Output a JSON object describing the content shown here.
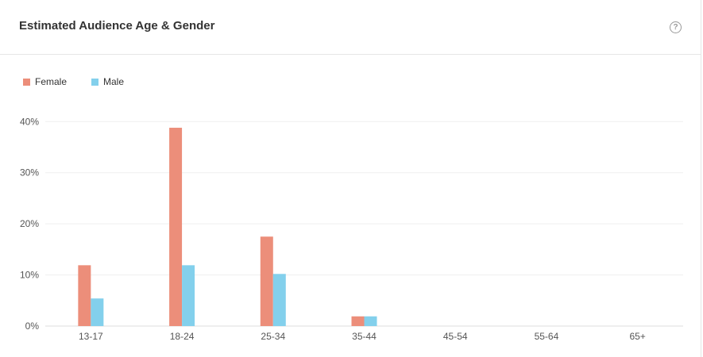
{
  "header": {
    "title": "Estimated Audience Age & Gender",
    "help_icon": "question-circle-icon"
  },
  "chart_data": {
    "type": "bar",
    "title": "",
    "categories": [
      "13-17",
      "18-24",
      "25-34",
      "35-44",
      "45-54",
      "55-64",
      "65+"
    ],
    "series": [
      {
        "name": "Female",
        "color": "#ec8e7a",
        "values": [
          11.9,
          38.8,
          17.5,
          1.9,
          0,
          0,
          0
        ]
      },
      {
        "name": "Male",
        "color": "#83d0ec",
        "values": [
          5.4,
          11.9,
          10.2,
          1.9,
          0,
          0,
          0
        ]
      }
    ],
    "yticks": [
      "0%",
      "10%",
      "20%",
      "30%",
      "40%"
    ],
    "ylim": [
      0,
      40
    ],
    "grid": true,
    "legend": "top-left"
  }
}
